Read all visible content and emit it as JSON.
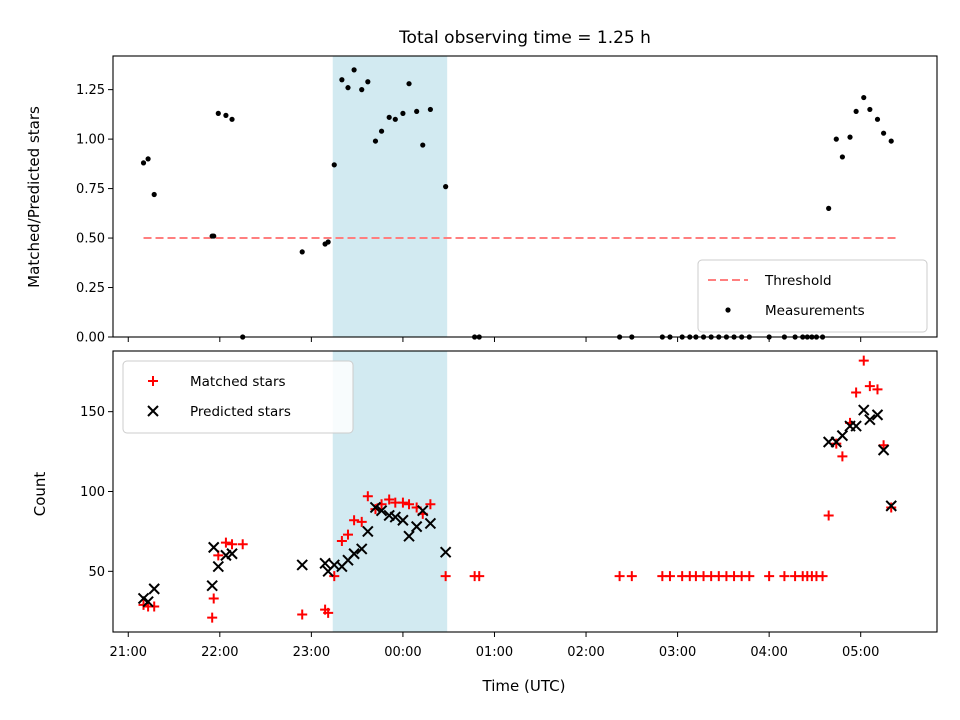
{
  "chart_data": [
    {
      "type": "scatter",
      "title": "Total observing time = 1.25 h",
      "xlabel": "",
      "ylabel": "Matched/Predicted stars",
      "xlim": [
        "20:50",
        "05:50"
      ],
      "ylim": [
        0,
        1.42
      ],
      "yticks": [
        0.0,
        0.25,
        0.5,
        0.75,
        1.0,
        1.25
      ],
      "ytick_labels": [
        "0.00",
        "0.25",
        "0.50",
        "0.75",
        "1.00",
        "1.25"
      ],
      "grid": false,
      "legend_position": "lower right",
      "highlight_band": {
        "x_start": "23:14",
        "x_end": "00:29",
        "color": "#add8e6"
      },
      "threshold": {
        "name": "Threshold",
        "y": 0.5,
        "x_start": "21:10",
        "x_end": "05:25",
        "color": "#ff7f7f"
      },
      "series": [
        {
          "name": "Measurements",
          "color": "#000000",
          "marker": "dot",
          "points": [
            [
              "21:10",
              0.88
            ],
            [
              "21:13",
              0.9
            ],
            [
              "21:17",
              0.72
            ],
            [
              "21:55",
              0.51
            ],
            [
              "21:56",
              0.51
            ],
            [
              "21:59",
              1.13
            ],
            [
              "22:04",
              1.12
            ],
            [
              "22:08",
              1.1
            ],
            [
              "22:15",
              0.0
            ],
            [
              "22:54",
              0.43
            ],
            [
              "23:09",
              0.47
            ],
            [
              "23:11",
              0.48
            ],
            [
              "23:15",
              0.87
            ],
            [
              "23:20",
              1.3
            ],
            [
              "23:24",
              1.26
            ],
            [
              "23:28",
              1.35
            ],
            [
              "23:33",
              1.25
            ],
            [
              "23:37",
              1.29
            ],
            [
              "23:42",
              0.99
            ],
            [
              "23:46",
              1.04
            ],
            [
              "23:51",
              1.11
            ],
            [
              "23:55",
              1.1
            ],
            [
              "00:00",
              1.13
            ],
            [
              "00:04",
              1.28
            ],
            [
              "00:09",
              1.14
            ],
            [
              "00:13",
              0.97
            ],
            [
              "00:18",
              1.15
            ],
            [
              "00:28",
              0.76
            ],
            [
              "00:47",
              0.0
            ],
            [
              "00:50",
              0.0
            ],
            [
              "02:22",
              0.0
            ],
            [
              "02:30",
              0.0
            ],
            [
              "02:50",
              0.0
            ],
            [
              "02:55",
              0.0
            ],
            [
              "03:03",
              0.0
            ],
            [
              "03:08",
              0.0
            ],
            [
              "03:12",
              0.0
            ],
            [
              "03:17",
              0.0
            ],
            [
              "03:22",
              0.0
            ],
            [
              "03:27",
              0.0
            ],
            [
              "03:32",
              0.0
            ],
            [
              "03:37",
              0.0
            ],
            [
              "03:42",
              0.0
            ],
            [
              "03:47",
              0.0
            ],
            [
              "04:00",
              0.0
            ],
            [
              "04:10",
              0.0
            ],
            [
              "04:17",
              0.0
            ],
            [
              "04:22",
              0.0
            ],
            [
              "04:25",
              0.0
            ],
            [
              "04:28",
              0.0
            ],
            [
              "04:31",
              0.0
            ],
            [
              "04:35",
              0.0
            ],
            [
              "04:39",
              0.65
            ],
            [
              "04:44",
              1.0
            ],
            [
              "04:48",
              0.91
            ],
            [
              "04:53",
              1.01
            ],
            [
              "04:57",
              1.14
            ],
            [
              "05:02",
              1.21
            ],
            [
              "05:06",
              1.15
            ],
            [
              "05:11",
              1.1
            ],
            [
              "05:15",
              1.03
            ],
            [
              "05:20",
              0.99
            ]
          ]
        }
      ]
    },
    {
      "type": "scatter",
      "title": "",
      "xlabel": "Time (UTC)",
      "ylabel": "Count",
      "xlim": [
        "20:50",
        "05:50"
      ],
      "ylim": [
        12,
        188
      ],
      "yticks": [
        50,
        100,
        150
      ],
      "xticks": [
        "21:00",
        "22:00",
        "23:00",
        "00:00",
        "01:00",
        "02:00",
        "03:00",
        "04:00",
        "05:00"
      ],
      "grid": false,
      "legend_position": "upper left",
      "highlight_band": {
        "x_start": "23:14",
        "x_end": "00:29",
        "color": "#add8e6"
      },
      "series": [
        {
          "name": "Matched stars",
          "color": "#ff0000",
          "marker": "plus",
          "points": [
            [
              "21:10",
              29
            ],
            [
              "21:13",
              28
            ],
            [
              "21:17",
              28
            ],
            [
              "21:55",
              21
            ],
            [
              "21:56",
              33
            ],
            [
              "21:59",
              60
            ],
            [
              "22:04",
              68
            ],
            [
              "22:08",
              67
            ],
            [
              "22:15",
              67
            ],
            [
              "22:54",
              23
            ],
            [
              "23:09",
              26
            ],
            [
              "23:11",
              24
            ],
            [
              "23:15",
              47
            ],
            [
              "23:20",
              69
            ],
            [
              "23:24",
              73
            ],
            [
              "23:28",
              82
            ],
            [
              "23:33",
              81
            ],
            [
              "23:37",
              97
            ],
            [
              "23:42",
              89
            ],
            [
              "23:46",
              92
            ],
            [
              "23:51",
              95
            ],
            [
              "23:55",
              93
            ],
            [
              "00:00",
              93
            ],
            [
              "00:04",
              92
            ],
            [
              "00:09",
              90
            ],
            [
              "00:13",
              86
            ],
            [
              "00:18",
              92
            ],
            [
              "00:28",
              47
            ],
            [
              "00:47",
              47
            ],
            [
              "00:50",
              47
            ],
            [
              "02:22",
              47
            ],
            [
              "02:30",
              47
            ],
            [
              "02:50",
              47
            ],
            [
              "02:55",
              47
            ],
            [
              "03:03",
              47
            ],
            [
              "03:08",
              47
            ],
            [
              "03:12",
              47
            ],
            [
              "03:17",
              47
            ],
            [
              "03:22",
              47
            ],
            [
              "03:27",
              47
            ],
            [
              "03:32",
              47
            ],
            [
              "03:37",
              47
            ],
            [
              "03:42",
              47
            ],
            [
              "03:47",
              47
            ],
            [
              "04:00",
              47
            ],
            [
              "04:10",
              47
            ],
            [
              "04:17",
              47
            ],
            [
              "04:22",
              47
            ],
            [
              "04:25",
              47
            ],
            [
              "04:28",
              47
            ],
            [
              "04:31",
              47
            ],
            [
              "04:35",
              47
            ],
            [
              "04:39",
              85
            ],
            [
              "04:44",
              130
            ],
            [
              "04:48",
              122
            ],
            [
              "04:53",
              143
            ],
            [
              "04:57",
              162
            ],
            [
              "05:02",
              182
            ],
            [
              "05:06",
              166
            ],
            [
              "05:11",
              164
            ],
            [
              "05:15",
              129
            ],
            [
              "05:20",
              90
            ]
          ]
        },
        {
          "name": "Predicted stars",
          "color": "#000000",
          "marker": "x",
          "points": [
            [
              "21:10",
              33
            ],
            [
              "21:13",
              31
            ],
            [
              "21:17",
              39
            ],
            [
              "21:55",
              41
            ],
            [
              "21:56",
              65
            ],
            [
              "21:59",
              53
            ],
            [
              "22:04",
              60
            ],
            [
              "22:08",
              61
            ],
            [
              "22:54",
              54
            ],
            [
              "23:09",
              55
            ],
            [
              "23:11",
              50
            ],
            [
              "23:15",
              54
            ],
            [
              "23:20",
              53
            ],
            [
              "23:24",
              57
            ],
            [
              "23:28",
              61
            ],
            [
              "23:33",
              64
            ],
            [
              "23:37",
              75
            ],
            [
              "23:42",
              90
            ],
            [
              "23:46",
              88
            ],
            [
              "23:51",
              85
            ],
            [
              "23:55",
              84
            ],
            [
              "00:00",
              82
            ],
            [
              "00:04",
              72
            ],
            [
              "00:09",
              78
            ],
            [
              "00:13",
              88
            ],
            [
              "00:18",
              80
            ],
            [
              "00:28",
              62
            ],
            [
              "04:39",
              131
            ],
            [
              "04:44",
              131
            ],
            [
              "04:48",
              135
            ],
            [
              "04:53",
              141
            ],
            [
              "04:57",
              141
            ],
            [
              "05:02",
              151
            ],
            [
              "05:06",
              145
            ],
            [
              "05:11",
              148
            ],
            [
              "05:15",
              126
            ],
            [
              "05:20",
              91
            ]
          ]
        }
      ]
    }
  ]
}
